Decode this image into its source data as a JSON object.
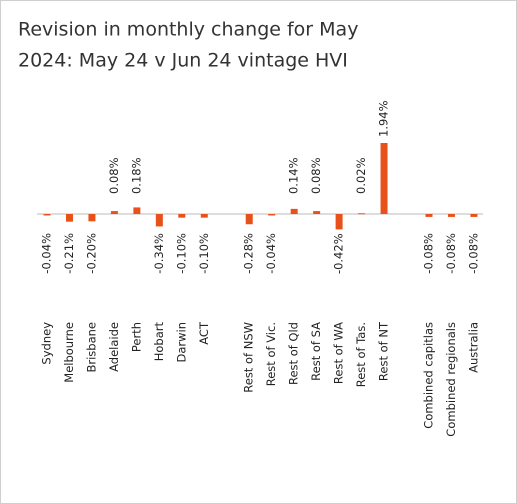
{
  "chart_data": {
    "type": "bar",
    "title": "Revision in monthly change for May 2024: May 24 v Jun 24 vintage HVI",
    "categories": [
      "Sydney",
      "Melbourne",
      "Brisbane",
      "Adelaide",
      "Perth",
      "Hobart",
      "Darwin",
      "ACT",
      null,
      "Rest of NSW",
      "Rest of Vic.",
      "Rest of Qld",
      "Rest of SA",
      "Rest of WA",
      "Rest of Tas.",
      "Rest of NT",
      null,
      "Combined capitlas",
      "Combined regionals",
      "Australia"
    ],
    "values": [
      -0.04,
      -0.21,
      -0.2,
      0.08,
      0.18,
      -0.34,
      -0.1,
      -0.1,
      null,
      -0.28,
      -0.04,
      0.14,
      0.08,
      -0.42,
      0.02,
      1.94,
      null,
      -0.08,
      -0.08,
      -0.08
    ],
    "value_labels": [
      "-0.04%",
      "-0.21%",
      "-0.20%",
      "0.08%",
      "0.18%",
      "-0.34%",
      "-0.10%",
      "-0.10%",
      null,
      "-0.28%",
      "-0.04%",
      "0.14%",
      "0.08%",
      "-0.42%",
      "0.02%",
      "1.94%",
      null,
      "-0.08%",
      "-0.08%",
      "-0.08%"
    ],
    "color": "#e8521a"
  }
}
